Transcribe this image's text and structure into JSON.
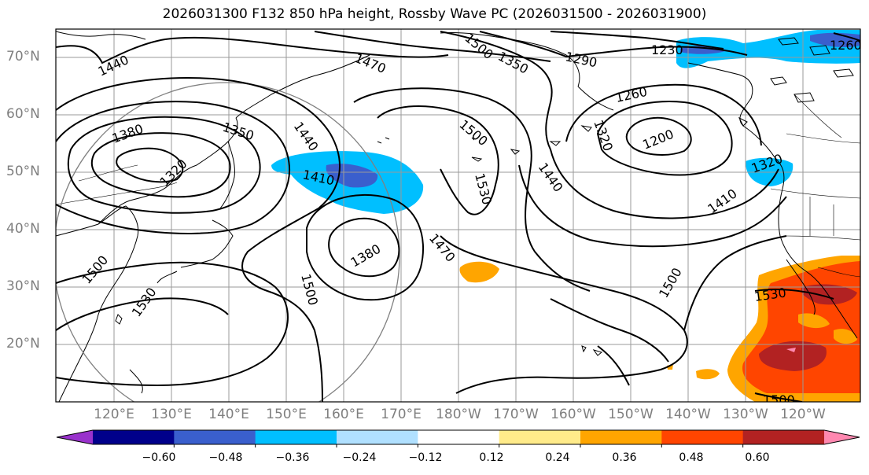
{
  "title": "2026031300 F132 850 hPa height, Rossby Wave PC (2026031500 - 2026031900)",
  "lat_labels": [
    "70°N",
    "60°N",
    "50°N",
    "40°N",
    "30°N",
    "20°N"
  ],
  "lon_labels": [
    "120°E",
    "130°E",
    "140°E",
    "150°E",
    "160°E",
    "170°E",
    "180°W",
    "170°W",
    "160°W",
    "150°W",
    "140°W",
    "130°W",
    "120°W"
  ],
  "contour_labels": {
    "c1440a": "1440",
    "c1470a": "1470",
    "c1350a": "1350",
    "c1290": "1290",
    "c1230": "1230",
    "c1260a": "1260",
    "c1260b": "1260",
    "c1380a": "1380",
    "c1350b": "1350",
    "c1320": "1320",
    "c1440b": "1440",
    "c1410a": "1410",
    "c1500a": "1500",
    "c1530a": "1530",
    "c1440c": "1440",
    "c1380b": "1380",
    "c1470b": "1470",
    "c1500b": "1500",
    "c1500c": "1500",
    "c1530b": "1530",
    "c1200": "1200",
    "c1230b": "1230",
    "c1320b": "1320",
    "c1410b": "1410",
    "c1500d": "1500",
    "c1530c": "1530",
    "c1500e": "1500",
    "c1500f": "1500",
    "c1320c": "1320"
  },
  "colorbar": {
    "ticks": [
      "−0.60",
      "−0.48",
      "−0.36",
      "−0.24",
      "−0.12",
      "0.12",
      "0.24",
      "0.36",
      "0.48",
      "0.60"
    ],
    "colors": [
      "#9932cc",
      "#00008b",
      "#3a5fcd",
      "#00bfff",
      "#b0e0ff",
      "#ffffff",
      "#ffeb8a",
      "#ffa500",
      "#ff4500",
      "#b22222",
      "#ff88b0"
    ]
  }
}
